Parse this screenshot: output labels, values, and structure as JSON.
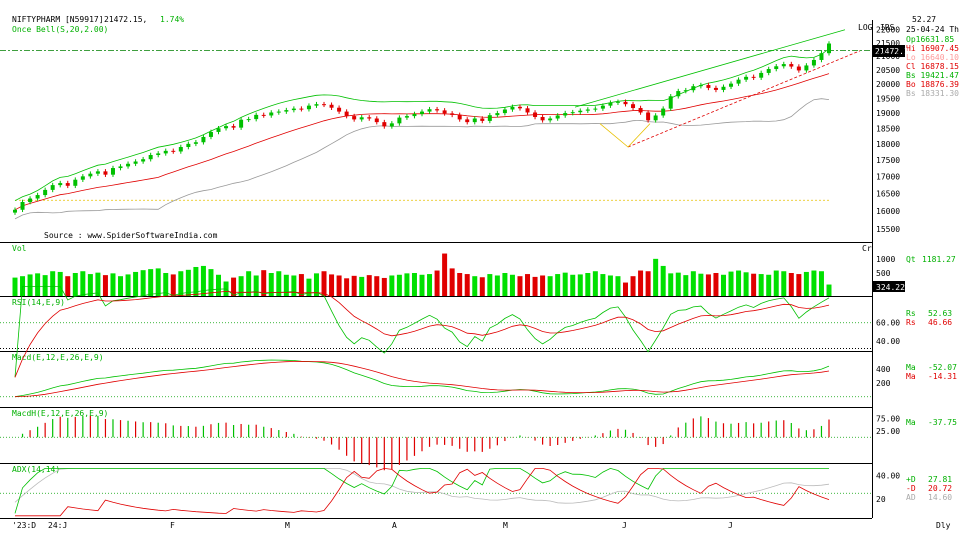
{
  "header": {
    "symbol": "NIFTYPHARM [N59917]",
    "last": "21472.15,",
    "change": "1.74%",
    "indicator": "Once Bell(S,20,2.00)",
    "log_label": "LOG",
    "irs_label": "IRS",
    "corner_value": "52.27",
    "date": "25-04-24 Th"
  },
  "ohlc": [
    {
      "text": "Op16631.85",
      "color": "#00b000"
    },
    {
      "text": "Hi 16907.45",
      "color": "#e00000"
    },
    {
      "text": "Lo 16640.10",
      "color": "#ff9999"
    },
    {
      "text": "Cl 16878.15",
      "color": "#e00000"
    },
    {
      "text": "Bs 19421.47",
      "color": "#00b000"
    },
    {
      "text": "Bo 18876.39",
      "color": "#e00000"
    },
    {
      "text": "Bs 18331.30",
      "color": "#aaaaaa"
    }
  ],
  "source": "Source : www.SpiderSoftwareIndia.com",
  "last_price_tag": "21472.1",
  "volume": {
    "label": "Vol",
    "unit": "Cr",
    "value_label": "Qt",
    "value": "1181.27",
    "tag": "324.22"
  },
  "rsi": {
    "label": "RSI(14,E,9)",
    "rows": [
      {
        "k": "Rs",
        "v": "52.63",
        "color": "#00b000"
      },
      {
        "k": "Rs",
        "v": "46.66",
        "color": "#e00000"
      }
    ]
  },
  "macd": {
    "label": "Macd(E,12,E,26,E,9)",
    "rows": [
      {
        "k": "Ma",
        "v": "-52.07",
        "color": "#00b000"
      },
      {
        "k": "Ma",
        "v": "-14.31",
        "color": "#e00000"
      }
    ]
  },
  "macdh": {
    "label": "MacdH(E,12,E,26,E,9)",
    "rows": [
      {
        "k": "Ma",
        "v": "-37.75",
        "color": "#00b000"
      }
    ]
  },
  "adx": {
    "label": "ADX(14,14)",
    "rows": [
      {
        "k": "+D",
        "v": "27.81",
        "color": "#00b000"
      },
      {
        "k": "-D",
        "v": "20.72",
        "color": "#e00000"
      },
      {
        "k": "AD",
        "v": "14.60",
        "color": "#aaaaaa"
      }
    ]
  },
  "x_labels": [
    "'23:D",
    "24:J",
    "F",
    "M",
    "A",
    "M",
    "J",
    "J"
  ],
  "x_end_label": "Dly",
  "chart_data": {
    "type": "candlestick",
    "price_ticks": [
      22000,
      21500,
      21000,
      20500,
      20000,
      19500,
      19000,
      18500,
      18000,
      17500,
      17000,
      16500,
      16000,
      15500
    ],
    "price_range": [
      15200,
      22300
    ],
    "close": [
      16030,
      16250,
      16350,
      16450,
      16600,
      16740,
      16800,
      16720,
      16900,
      17000,
      17080,
      17150,
      17050,
      17250,
      17300,
      17380,
      17450,
      17520,
      17650,
      17700,
      17780,
      17760,
      17900,
      18000,
      18050,
      18220,
      18380,
      18500,
      18570,
      18520,
      18780,
      18800,
      18940,
      18920,
      19020,
      19050,
      19100,
      19150,
      19130,
      19250,
      19300,
      19280,
      19180,
      19050,
      18900,
      18790,
      18860,
      18820,
      18700,
      18560,
      18660,
      18850,
      18900,
      18970,
      19050,
      19130,
      19090,
      18990,
      18940,
      18790,
      18700,
      18820,
      18740,
      18930,
      19000,
      19120,
      19210,
      19160,
      19020,
      18870,
      18760,
      18820,
      18920,
      19000,
      19030,
      19080,
      19120,
      19150,
      19250,
      19350,
      19380,
      19300,
      19170,
      19020,
      18760,
      18920,
      19150,
      19570,
      19750,
      19780,
      19920,
      19960,
      19860,
      19790,
      19900,
      20010,
      20150,
      20250,
      20220,
      20390,
      20530,
      20630,
      20710,
      20620,
      20480,
      20660,
      20860,
      21110,
      21472
    ],
    "volume_range": [
      0,
      1300
    ],
    "volume": [
      520,
      560,
      610,
      640,
      590,
      700,
      680,
      560,
      650,
      700,
      620,
      660,
      590,
      640,
      560,
      610,
      680,
      730,
      760,
      780,
      650,
      610,
      700,
      740,
      820,
      850,
      760,
      600,
      410,
      520,
      560,
      700,
      580,
      730,
      650,
      700,
      600,
      580,
      620,
      490,
      640,
      700,
      610,
      580,
      500,
      570,
      540,
      590,
      560,
      510,
      580,
      600,
      640,
      650,
      600,
      620,
      720,
      1200,
      780,
      650,
      620,
      560,
      530,
      620,
      580,
      650,
      600,
      560,
      620,
      540,
      580,
      560,
      620,
      660,
      600,
      610,
      650,
      700,
      620,
      580,
      560,
      380,
      560,
      720,
      700,
      1050,
      850,
      640,
      660,
      590,
      700,
      630,
      610,
      650,
      600,
      690,
      720,
      670,
      630,
      620,
      600,
      720,
      700,
      650,
      620,
      680,
      720,
      700,
      324
    ],
    "rsi_range": [
      30,
      85
    ],
    "rsi_ticks": [
      60,
      40
    ],
    "macd_range": [
      -120,
      620
    ],
    "macd_ticks": [
      400,
      200
    ],
    "macdh_range": [
      -100,
      110
    ],
    "macdh_ticks": [
      75.0,
      25.0
    ],
    "adx_range": [
      5,
      48
    ],
    "adx_ticks": [
      40,
      20
    ]
  }
}
